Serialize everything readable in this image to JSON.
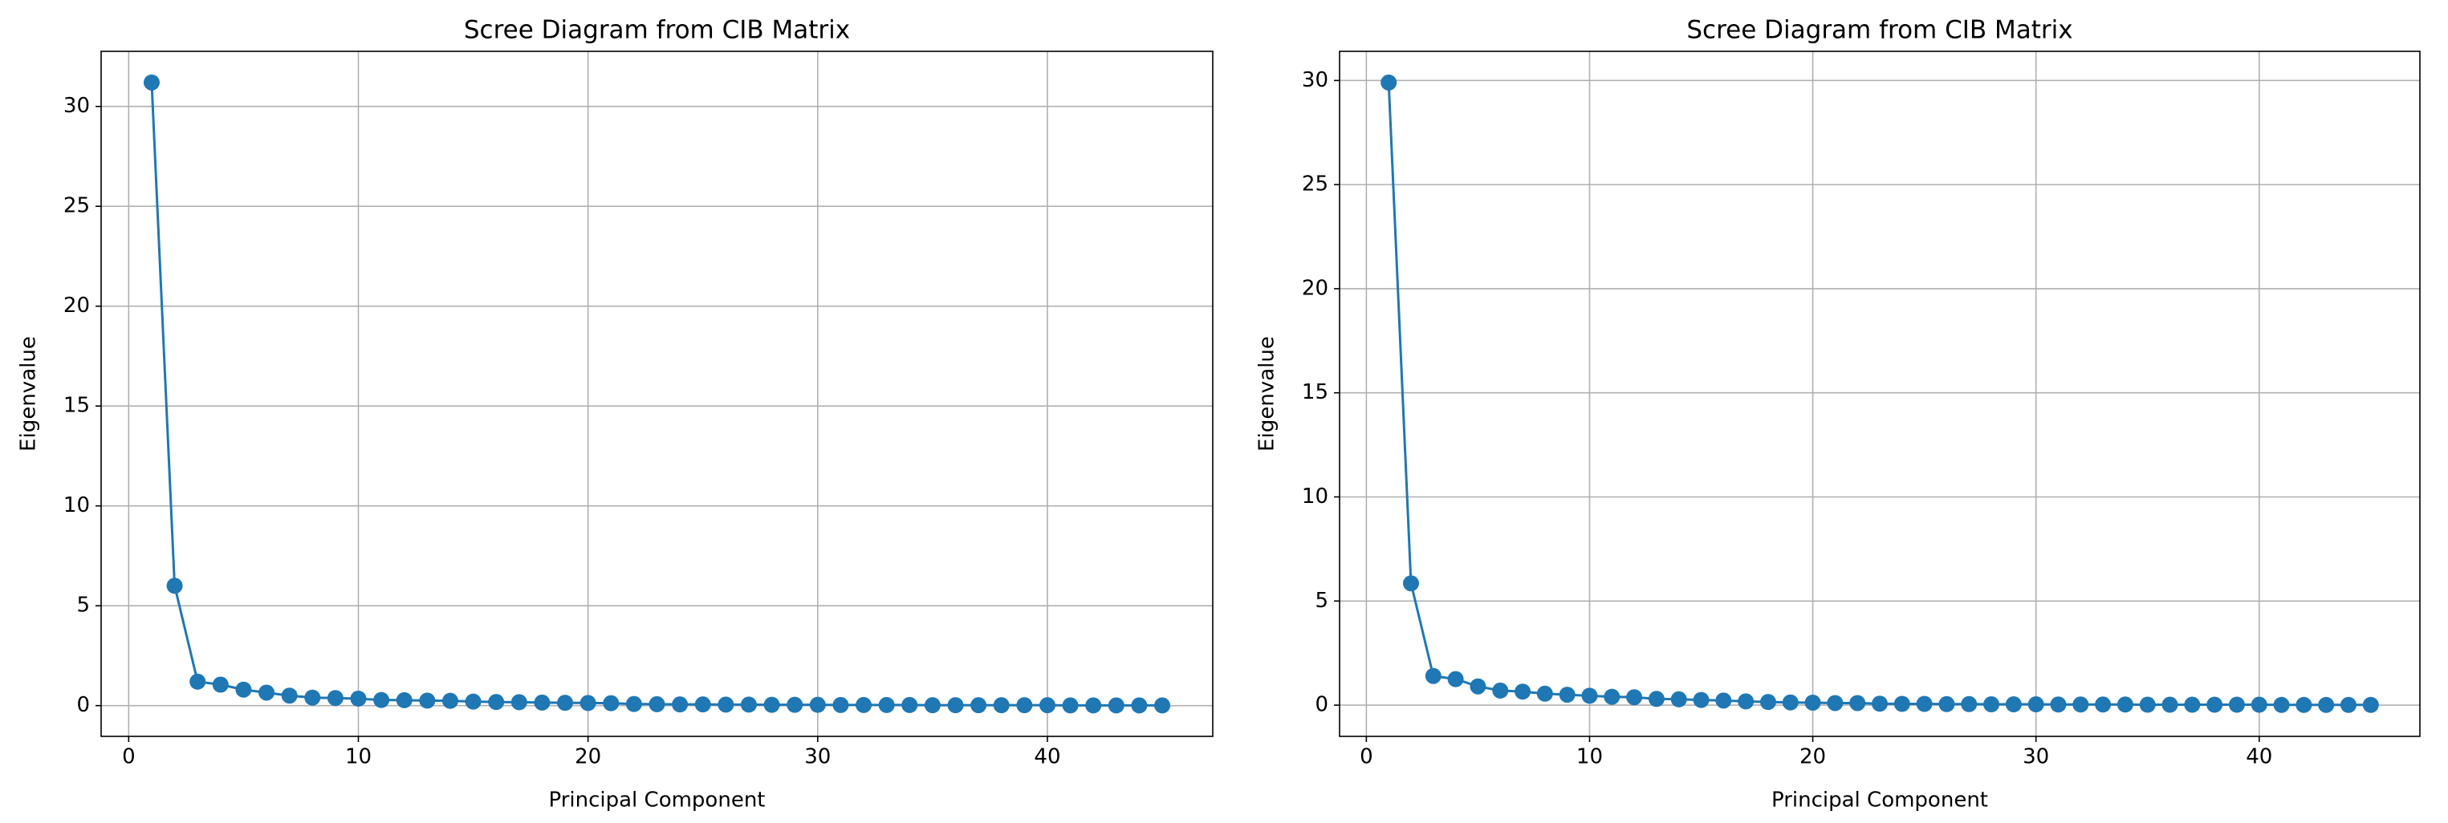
{
  "chart_data": [
    {
      "type": "line",
      "title": "Scree Diagram from CIB Matrix",
      "x_label": "Principal Component",
      "y_label": "Eigenvalue",
      "x": [
        1,
        2,
        3,
        4,
        5,
        6,
        7,
        8,
        9,
        10,
        11,
        12,
        13,
        14,
        15,
        16,
        17,
        18,
        19,
        20,
        21,
        22,
        23,
        24,
        25,
        26,
        27,
        28,
        29,
        30,
        31,
        32,
        33,
        34,
        35,
        36,
        37,
        38,
        39,
        40,
        41,
        42,
        43,
        44,
        45
      ],
      "series": [
        {
          "color": "#1f77b4",
          "values": [
            31.2,
            6.0,
            1.2,
            1.05,
            0.8,
            0.65,
            0.5,
            0.4,
            0.38,
            0.35,
            0.28,
            0.27,
            0.25,
            0.24,
            0.2,
            0.18,
            0.17,
            0.15,
            0.14,
            0.13,
            0.12,
            0.08,
            0.07,
            0.06,
            0.06,
            0.05,
            0.05,
            0.04,
            0.04,
            0.04,
            0.03,
            0.03,
            0.03,
            0.03,
            0.02,
            0.02,
            0.02,
            0.02,
            0.02,
            0.02,
            0.01,
            0.01,
            0.01,
            0.01,
            0.01
          ]
        }
      ],
      "xlim": [
        -1.2,
        47.2
      ],
      "xticks": [
        0,
        10,
        20,
        30,
        40
      ],
      "ylim": [
        -1.54,
        32.76
      ],
      "yticks": [
        0,
        5,
        10,
        15,
        20,
        25,
        30
      ],
      "grid": true
    },
    {
      "type": "line",
      "title": "Scree Diagram from CIB Matrix",
      "x_label": "Principal Component",
      "y_label": "Eigenvalue",
      "x": [
        1,
        2,
        3,
        4,
        5,
        6,
        7,
        8,
        9,
        10,
        11,
        12,
        13,
        14,
        15,
        16,
        17,
        18,
        19,
        20,
        21,
        22,
        23,
        24,
        25,
        26,
        27,
        28,
        29,
        30,
        31,
        32,
        33,
        34,
        35,
        36,
        37,
        38,
        39,
        40,
        41,
        42,
        43,
        44,
        45
      ],
      "series": [
        {
          "color": "#1f77b4",
          "values": [
            29.9,
            5.85,
            1.4,
            1.25,
            0.9,
            0.7,
            0.65,
            0.55,
            0.5,
            0.45,
            0.4,
            0.38,
            0.3,
            0.28,
            0.25,
            0.22,
            0.18,
            0.15,
            0.13,
            0.12,
            0.1,
            0.1,
            0.07,
            0.06,
            0.06,
            0.05,
            0.05,
            0.04,
            0.04,
            0.04,
            0.03,
            0.03,
            0.03,
            0.03,
            0.02,
            0.02,
            0.02,
            0.02,
            0.02,
            0.02,
            0.01,
            0.01,
            0.01,
            0.01,
            0.01
          ]
        }
      ],
      "xlim": [
        -1.2,
        47.2
      ],
      "xticks": [
        0,
        10,
        20,
        30,
        40
      ],
      "ylim": [
        -1.5,
        31.4
      ],
      "yticks": [
        0,
        5,
        10,
        15,
        20,
        25,
        30
      ],
      "grid": true
    }
  ]
}
